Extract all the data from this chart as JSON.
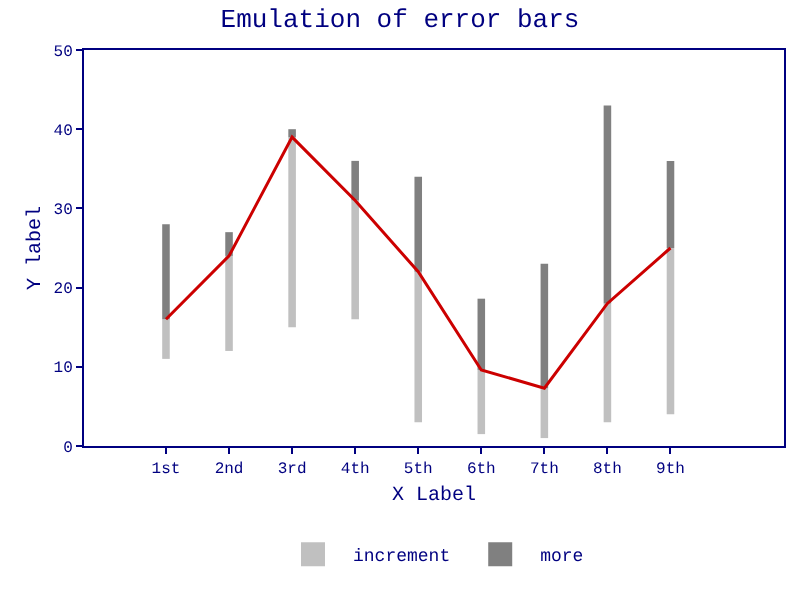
{
  "chart_data": {
    "type": "bar",
    "title": "Emulation of error bars",
    "xlabel": "X Label",
    "ylabel": "Y label",
    "categories": [
      "1st",
      "2nd",
      "3rd",
      "4th",
      "5th",
      "6th",
      "7th",
      "8th",
      "9th"
    ],
    "series": [
      {
        "name": "increment",
        "color": "#c0c0c0",
        "base": [
          11,
          12,
          15,
          16,
          3,
          1.5,
          1,
          3,
          4
        ],
        "values": [
          5,
          12,
          24,
          15,
          19,
          8.1,
          6.3,
          15,
          21
        ]
      },
      {
        "name": "more",
        "color": "#808080",
        "base": [
          16,
          24,
          39,
          31,
          22,
          9.6,
          7.3,
          18,
          25
        ],
        "values": [
          12,
          3,
          1,
          5,
          12,
          9,
          15.7,
          25,
          11
        ]
      },
      {
        "type": "line",
        "color": "#cc0000",
        "values": [
          16,
          24,
          39,
          31,
          22,
          9.6,
          7.3,
          18,
          25
        ]
      }
    ],
    "ylim": [
      0,
      50
    ],
    "yticks": [
      0,
      10,
      20,
      30,
      40,
      50
    ],
    "legend": "bottom",
    "marker": "none",
    "line_style": "solid"
  }
}
